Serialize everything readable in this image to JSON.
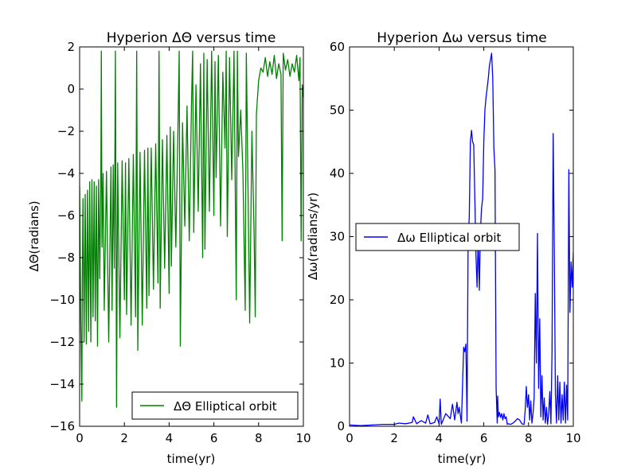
{
  "chart_data": [
    {
      "type": "line",
      "title": "Hyperion  ΔΘ versus time",
      "xlabel": "time(yr)",
      "ylabel": "ΔΘ(radians)",
      "xlim": [
        0,
        10
      ],
      "ylim": [
        -16,
        2
      ],
      "xticks": [
        0,
        2,
        4,
        6,
        8,
        10
      ],
      "yticks": [
        -16,
        -14,
        -12,
        -10,
        -8,
        -6,
        -4,
        -2,
        0,
        2
      ],
      "legend_position": "lower-right",
      "grid": false,
      "series": [
        {
          "name": "ΔΘ Elliptical orbit",
          "color": "#008000",
          "x": [
            0.0,
            0.05,
            0.1,
            0.12,
            0.15,
            0.2,
            0.25,
            0.3,
            0.35,
            0.4,
            0.45,
            0.5,
            0.55,
            0.6,
            0.65,
            0.7,
            0.75,
            0.8,
            0.85,
            0.9,
            0.95,
            0.97,
            1.0,
            1.05,
            1.1,
            1.2,
            1.3,
            1.4,
            1.45,
            1.5,
            1.55,
            1.6,
            1.65,
            1.7,
            1.8,
            1.9,
            2.0,
            2.05,
            2.1,
            2.2,
            2.3,
            2.4,
            2.5,
            2.55,
            2.6,
            2.7,
            2.8,
            2.9,
            3.0,
            3.05,
            3.1,
            3.2,
            3.3,
            3.4,
            3.5,
            3.55,
            3.6,
            3.7,
            3.8,
            3.9,
            4.0,
            4.05,
            4.1,
            4.2,
            4.3,
            4.4,
            4.45,
            4.5,
            4.6,
            4.7,
            4.8,
            4.9,
            5.0,
            5.05,
            5.1,
            5.2,
            5.3,
            5.4,
            5.5,
            5.55,
            5.6,
            5.7,
            5.8,
            5.9,
            6.0,
            6.05,
            6.1,
            6.2,
            6.3,
            6.4,
            6.5,
            6.55,
            6.6,
            6.7,
            6.8,
            6.9,
            7.0,
            7.05,
            7.1,
            7.2,
            7.3,
            7.4,
            7.45,
            7.5,
            7.6,
            7.7,
            7.8,
            7.85,
            7.9,
            8.0,
            8.1,
            8.2,
            8.3,
            8.4,
            8.5,
            8.6,
            8.7,
            8.8,
            8.9,
            9.0,
            9.05,
            9.1,
            9.2,
            9.3,
            9.4,
            9.5,
            9.6,
            9.7,
            9.8,
            9.85,
            9.9,
            9.95,
            10.0
          ],
          "y": [
            -4.6,
            -11.0,
            -14.8,
            -9.0,
            -5.2,
            -12.0,
            -5.0,
            -12.1,
            -4.8,
            -11.5,
            -4.4,
            -12.0,
            -4.3,
            -10.8,
            -4.4,
            -11.0,
            -4.6,
            -12.2,
            -4.3,
            -9.0,
            -4.0,
            1.8,
            -7.5,
            -4.0,
            -10.5,
            -3.9,
            -12.0,
            -3.7,
            -10.5,
            -3.6,
            -8.5,
            1.8,
            -15.1,
            -3.5,
            -11.8,
            -3.4,
            -10.0,
            -3.5,
            -10.7,
            -3.3,
            -11.2,
            -3.1,
            -10.8,
            1.8,
            -12.4,
            -3.0,
            -11.2,
            -2.9,
            -10.4,
            -2.8,
            -9.8,
            -2.8,
            -9.5,
            -2.6,
            -9.2,
            1.8,
            -10.4,
            -2.4,
            -8.5,
            -2.2,
            -9.7,
            -1.8,
            -8.4,
            -2.0,
            -7.5,
            -1.5,
            1.8,
            -12.2,
            -1.6,
            -6.5,
            -0.8,
            -7.2,
            -0.7,
            1.8,
            -6.8,
            0.2,
            -5.8,
            1.2,
            -8.0,
            1.7,
            -7.6,
            1.4,
            -5.8,
            1.8,
            -6.0,
            1.3,
            -4.2,
            1.6,
            -6.5,
            0.8,
            -2.8,
            1.8,
            -7.0,
            1.5,
            -4.3,
            1.8,
            -10.0,
            1.8,
            -3.2,
            -1.0,
            -4.0,
            -10.5,
            1.7,
            -2.5,
            -11.1,
            -2.0,
            -7.0,
            -10.8,
            -1.2,
            0.4,
            1.0,
            0.8,
            1.5,
            0.6,
            1.3,
            0.7,
            1.6,
            0.5,
            1.2,
            0.7,
            -7.2,
            1.7,
            0.9,
            1.4,
            0.6,
            1.2,
            0.8,
            1.6,
            0.4,
            1.5,
            -7.2,
            0.2,
            -0.4
          ]
        }
      ]
    },
    {
      "type": "line",
      "title": "Hyperion  Δω versus time",
      "xlabel": "time(yr)",
      "ylabel": "Δω(radians/yr)",
      "xlim": [
        0,
        10
      ],
      "ylim": [
        0,
        60
      ],
      "xticks": [
        0,
        2,
        4,
        6,
        8,
        10
      ],
      "yticks": [
        0,
        10,
        20,
        30,
        40,
        50,
        60
      ],
      "legend_position": "center-left",
      "grid": false,
      "series": [
        {
          "name": "Δω Elliptical orbit",
          "color": "#0000ff",
          "x": [
            0.0,
            0.5,
            1.0,
            1.5,
            2.0,
            2.2,
            2.5,
            2.8,
            2.85,
            3.0,
            3.2,
            3.4,
            3.5,
            3.6,
            3.8,
            3.9,
            4.0,
            4.05,
            4.1,
            4.3,
            4.5,
            4.6,
            4.7,
            4.8,
            4.85,
            4.9,
            5.0,
            5.05,
            5.1,
            5.15,
            5.2,
            5.25,
            5.3,
            5.35,
            5.4,
            5.45,
            5.5,
            5.55,
            5.6,
            5.65,
            5.7,
            5.75,
            5.8,
            5.85,
            5.9,
            5.95,
            6.0,
            6.05,
            6.1,
            6.15,
            6.2,
            6.25,
            6.3,
            6.35,
            6.4,
            6.45,
            6.5,
            6.55,
            6.6,
            6.62,
            6.65,
            6.7,
            6.75,
            6.8,
            6.85,
            6.9,
            6.95,
            7.0,
            7.05,
            7.1,
            7.2,
            7.3,
            7.4,
            7.5,
            7.6,
            7.7,
            7.8,
            7.85,
            7.9,
            7.95,
            8.0,
            8.05,
            8.1,
            8.15,
            8.2,
            8.25,
            8.3,
            8.35,
            8.4,
            8.45,
            8.5,
            8.55,
            8.6,
            8.65,
            8.7,
            8.75,
            8.8,
            8.85,
            8.9,
            8.95,
            9.0,
            9.05,
            9.1,
            9.15,
            9.2,
            9.25,
            9.3,
            9.35,
            9.4,
            9.45,
            9.5,
            9.55,
            9.6,
            9.65,
            9.7,
            9.75,
            9.8,
            9.85,
            9.9,
            9.95,
            10.0
          ],
          "y": [
            0.2,
            0.1,
            0.2,
            0.3,
            0.3,
            0.5,
            0.4,
            0.6,
            1.5,
            0.4,
            0.9,
            0.5,
            1.8,
            0.4,
            0.6,
            1.5,
            0.4,
            4.3,
            0.3,
            2.0,
            1.2,
            3.5,
            1.0,
            3.8,
            2.0,
            3.0,
            0.5,
            6.5,
            12.5,
            11.8,
            13.0,
            0.8,
            30.0,
            33.0,
            45.0,
            46.8,
            45.0,
            44.5,
            36.0,
            27.0,
            22.0,
            30.0,
            21.5,
            31.0,
            34.5,
            36.0,
            45.0,
            50.0,
            52.0,
            53.5,
            55.0,
            57.0,
            58.0,
            59.0,
            55.0,
            44.0,
            40.5,
            6.0,
            0.5,
            4.8,
            1.5,
            2.2,
            1.4,
            2.0,
            1.0,
            2.0,
            1.2,
            1.5,
            0.3,
            0.4,
            0.3,
            0.5,
            0.8,
            1.2,
            1.0,
            0.4,
            0.3,
            2.5,
            6.3,
            3.0,
            5.0,
            1.0,
            4.0,
            0.5,
            2.0,
            4.5,
            21.0,
            10.0,
            30.5,
            6.0,
            17.0,
            1.5,
            8.0,
            1.0,
            4.5,
            0.5,
            3.0,
            0.3,
            2.0,
            5.5,
            0.4,
            12.0,
            46.3,
            28.0,
            5.0,
            0.5,
            8.0,
            1.0,
            7.0,
            0.5,
            5.0,
            1.0,
            7.0,
            0.5,
            6.5,
            1.0,
            40.6,
            18.0,
            26.0,
            22.0,
            27.5
          ]
        }
      ]
    }
  ]
}
